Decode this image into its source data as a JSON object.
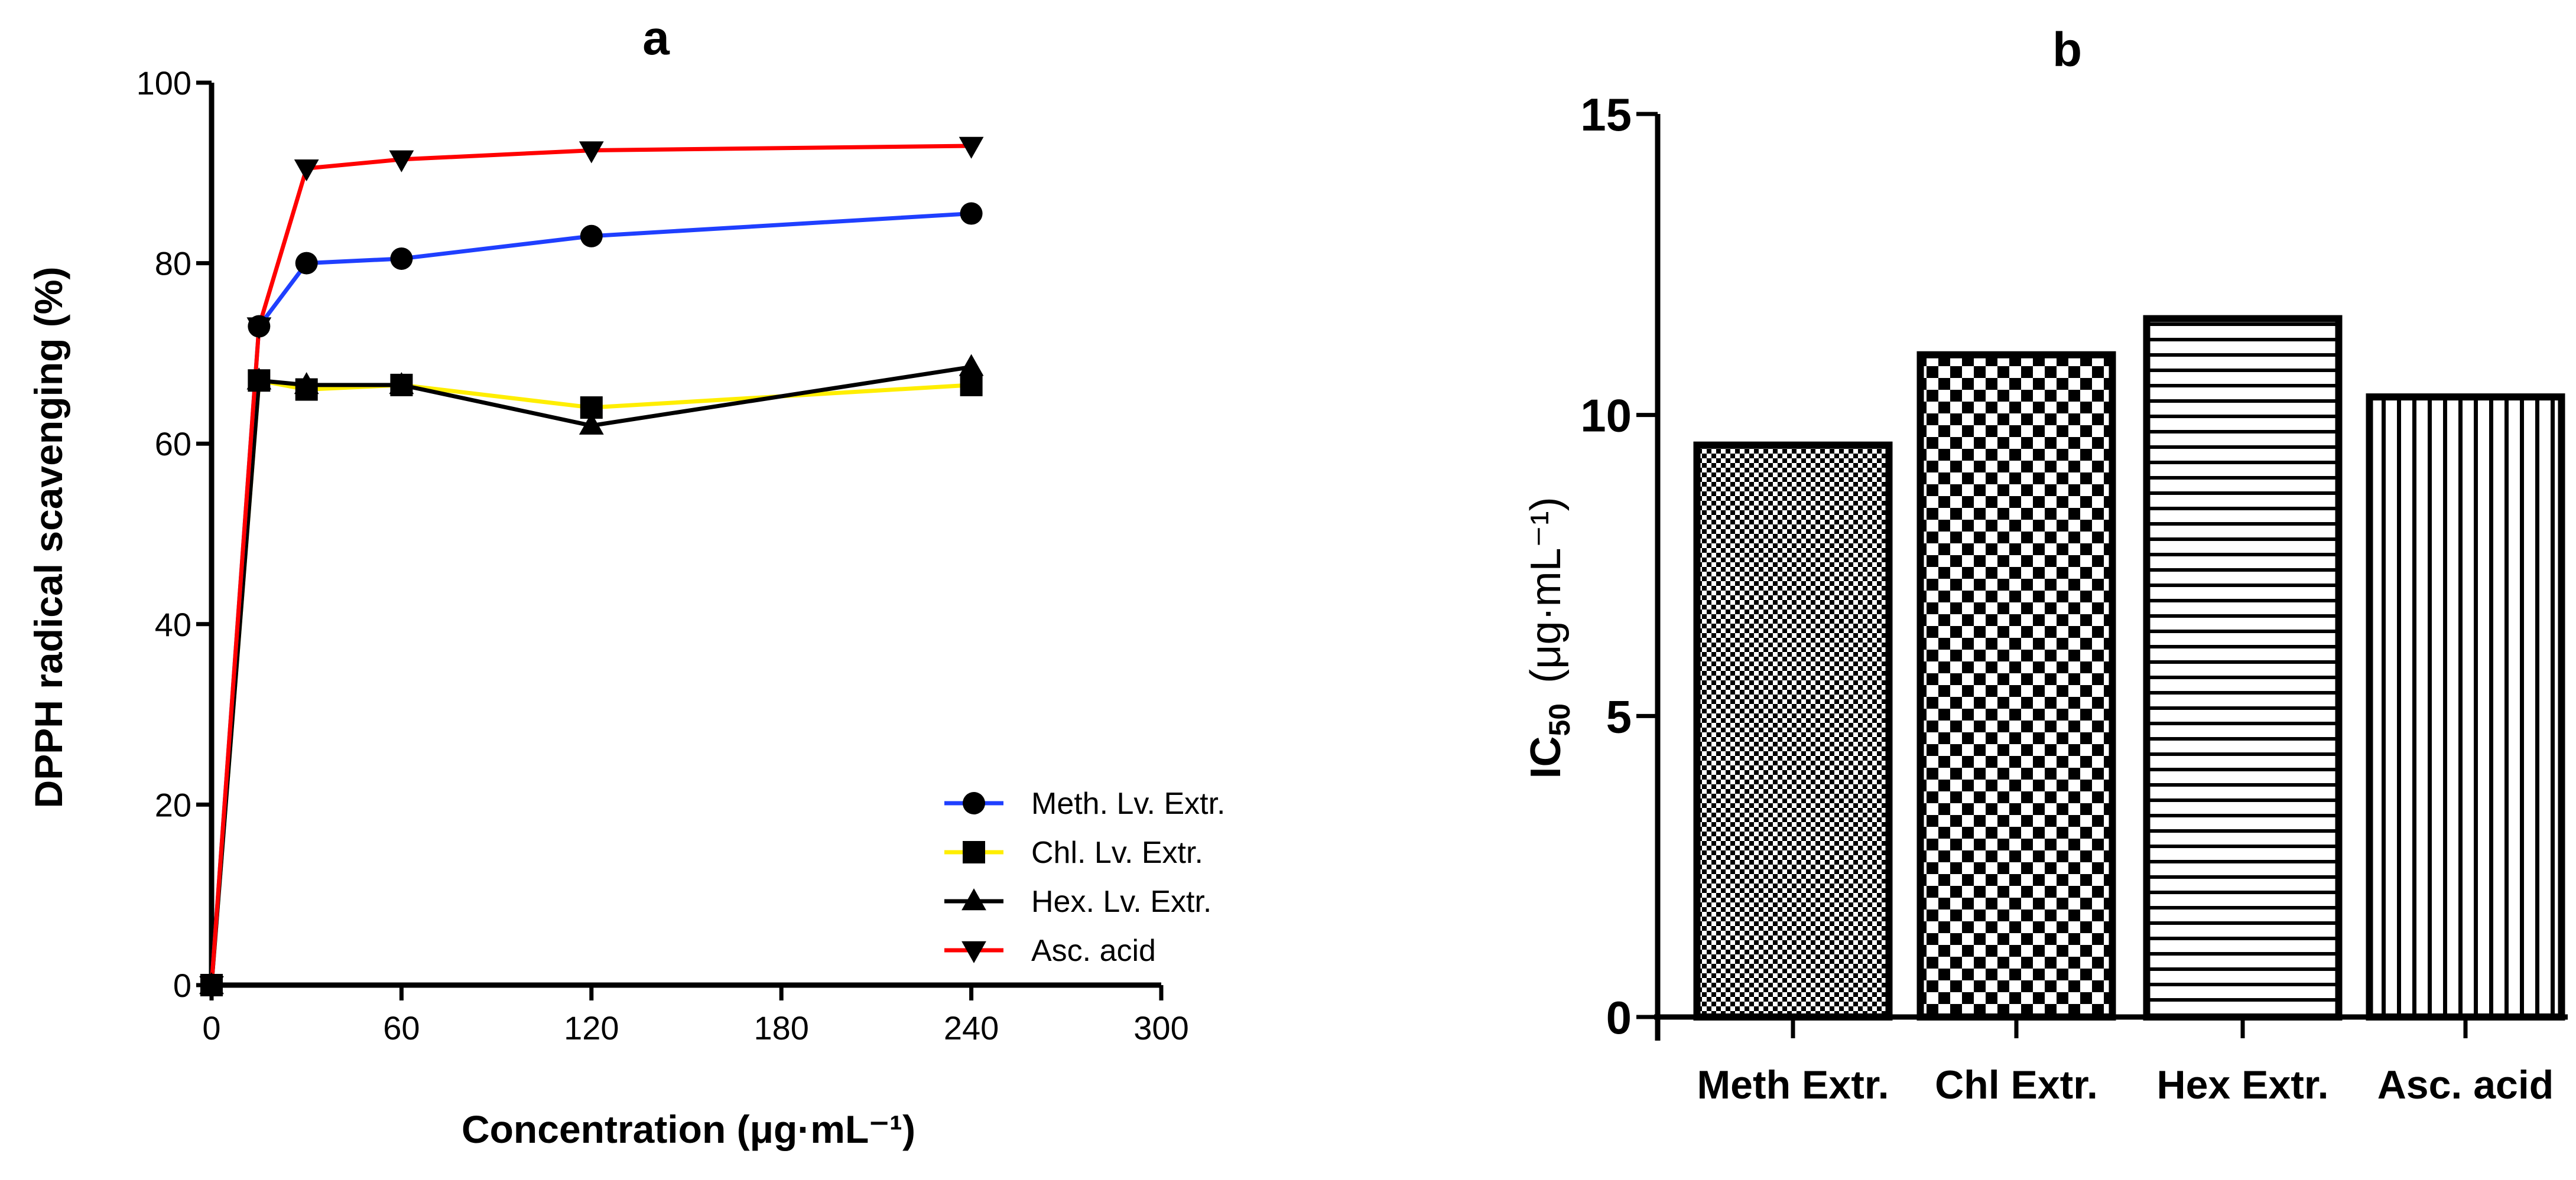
{
  "chart_data": [
    {
      "panel": "a",
      "type": "line",
      "title": "a",
      "xlabel": "Concentration (μg·mL⁻¹)",
      "ylabel": "DPPH radical scavenging (%)",
      "xlim": [
        0,
        300
      ],
      "ylim": [
        0,
        100
      ],
      "xticks": [
        "0",
        "60",
        "120",
        "180",
        "240",
        "300"
      ],
      "yticks": [
        "0",
        "20",
        "40",
        "60",
        "80",
        "100"
      ],
      "grid": false,
      "legend_position": "bottom-right",
      "x": [
        0,
        15,
        30,
        60,
        120,
        240
      ],
      "series": [
        {
          "name": "Meth. Lv. Extr.",
          "color": "#1f3fff",
          "marker": "circle",
          "values": [
            0,
            73,
            80,
            80.5,
            83,
            85.5
          ]
        },
        {
          "name": "Chl. Lv. Extr.",
          "color": "#ffee00",
          "marker": "square",
          "values": [
            0,
            67,
            66,
            66.5,
            64,
            66.5
          ]
        },
        {
          "name": "Hex. Lv. Extr.",
          "color": "#000000",
          "marker": "triangle-up",
          "values": [
            0,
            67,
            66.5,
            66.5,
            62,
            68.5
          ]
        },
        {
          "name": "Asc. acid",
          "color": "#ff0000",
          "marker": "triangle-down",
          "values": [
            0,
            73,
            90.5,
            91.5,
            92.5,
            93
          ]
        }
      ]
    },
    {
      "panel": "b",
      "type": "bar",
      "title": "b",
      "xlabel": "",
      "ylabel_main": "IC",
      "ylabel_sub": "50",
      "ylabel_unit": "(μg·mL⁻¹)",
      "ylim": [
        0,
        15
      ],
      "yticks": [
        "0",
        "5",
        "10",
        "15"
      ],
      "grid": false,
      "categories": [
        "Meth Extr.",
        "Chl Extr.",
        "Hex Extr.",
        "Asc. acid"
      ],
      "values": [
        9.5,
        11.0,
        11.6,
        10.3
      ],
      "patterns": [
        "fine-dots",
        "checkerboard",
        "horizontal-lines",
        "vertical-lines"
      ]
    }
  ]
}
